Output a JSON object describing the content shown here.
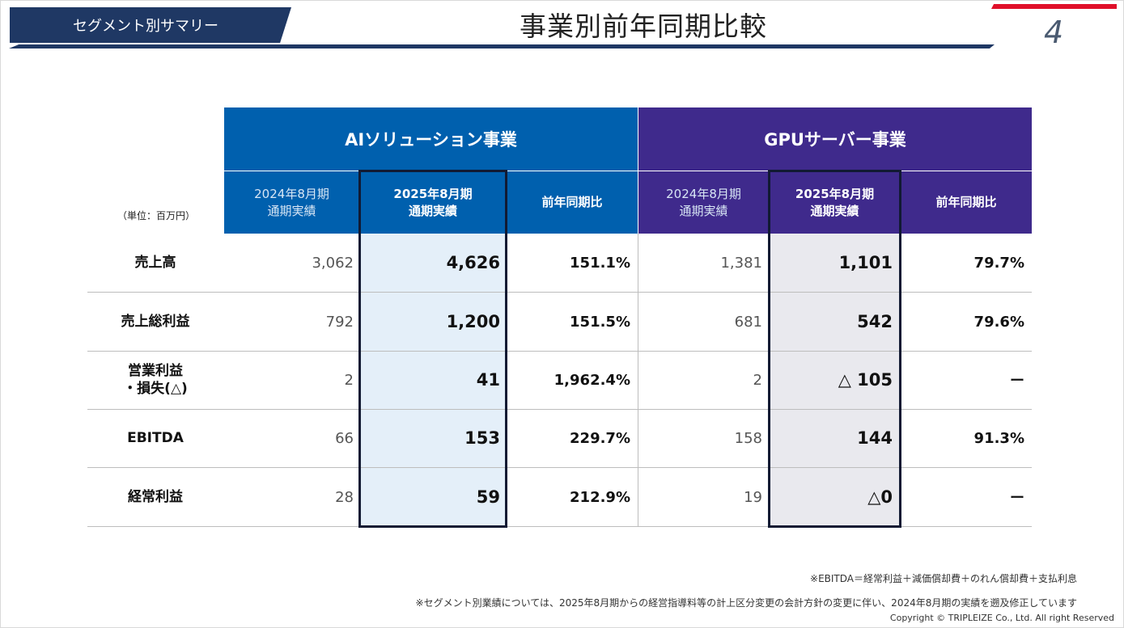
{
  "header": {
    "segment_label": "セグメント別サマリー",
    "title": "事業別前年同期比較",
    "page_number": "4"
  },
  "table": {
    "unit": "（単位：百万円）",
    "groups": [
      {
        "name": "AIソリューション事業",
        "color": "#0060ae"
      },
      {
        "name": "GPUサーバー事業",
        "color": "#3f2a8c"
      }
    ],
    "col_prev_line1": "2024年8月期",
    "col_prev_line2": "通期実績",
    "col_cur_line1": "2025年8月期",
    "col_cur_line2": "通期実績",
    "col_ratio": "前年同期比",
    "rows": [
      {
        "label": "売上高",
        "ai_prev": "3,062",
        "ai_cur": "4,626",
        "ai_ratio": "151.1%",
        "gpu_prev": "1,381",
        "gpu_cur": "1,101",
        "gpu_ratio": "79.7%"
      },
      {
        "label": "売上総利益",
        "ai_prev": "792",
        "ai_cur": "1,200",
        "ai_ratio": "151.5%",
        "gpu_prev": "681",
        "gpu_cur": "542",
        "gpu_ratio": "79.6%"
      },
      {
        "label": "営業利益",
        "label2": "・損失(△)",
        "ai_prev": "2",
        "ai_cur": "41",
        "ai_ratio": "1,962.4%",
        "gpu_prev": "2",
        "gpu_cur": "△ 105",
        "gpu_ratio": "ー"
      },
      {
        "label": "EBITDA",
        "ai_prev": "66",
        "ai_cur": "153",
        "ai_ratio": "229.7%",
        "gpu_prev": "158",
        "gpu_cur": "144",
        "gpu_ratio": "91.3%"
      },
      {
        "label": "経常利益",
        "ai_prev": "28",
        "ai_cur": "59",
        "ai_ratio": "212.9%",
        "gpu_prev": "19",
        "gpu_cur": "△0",
        "gpu_ratio": "ー"
      }
    ]
  },
  "notes": {
    "ebitda": "※EBITDA＝経常利益＋減価償却費＋のれん償却費＋支払利息",
    "segment": "※セグメント別業績については、2025年8月期からの経営指導料等の計上区分変更の会計方針の変更に伴い、2024年8月期の実績を遡及修正しています",
    "copyright": "Copyright © TRIPLEIZE Co., Ltd.  All right Reserved"
  }
}
